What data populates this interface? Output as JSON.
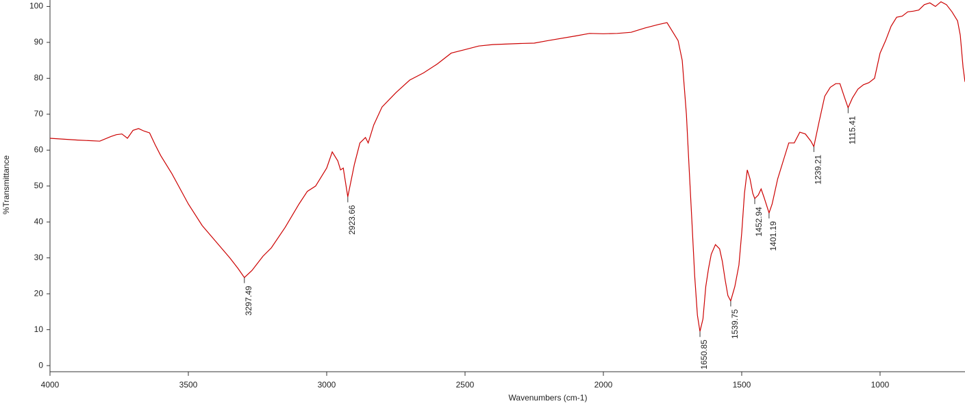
{
  "chart_data": {
    "type": "line",
    "x_label": "Wavenumbers (cm-1)",
    "y_label": "%Transmittance",
    "color": "#cc0000",
    "xlim": [
      4000,
      693
    ],
    "ylim": [
      -1.7,
      101.8
    ],
    "xticks": [
      4000,
      3500,
      3000,
      2500,
      2000,
      1500,
      1000
    ],
    "yticks": [
      0,
      10,
      20,
      30,
      40,
      50,
      60,
      70,
      80,
      90,
      100
    ],
    "x": [
      4000,
      3900,
      3820,
      3780,
      3760,
      3740,
      3720,
      3700,
      3680,
      3660,
      3640,
      3620,
      3600,
      3560,
      3500,
      3450,
      3400,
      3350,
      3320,
      3297.49,
      3270,
      3230,
      3200,
      3150,
      3100,
      3070,
      3040,
      3000,
      2980,
      2960,
      2950,
      2940,
      2923.66,
      2900,
      2880,
      2860,
      2850,
      2830,
      2800,
      2750,
      2700,
      2650,
      2600,
      2550,
      2500,
      2450,
      2400,
      2300,
      2250,
      2200,
      2100,
      2050,
      2000,
      1950,
      1900,
      1850,
      1800,
      1770,
      1750,
      1730,
      1715,
      1700,
      1690,
      1680,
      1670,
      1660,
      1650.85,
      1640,
      1630,
      1620,
      1610,
      1595,
      1580,
      1570,
      1560,
      1550,
      1539.75,
      1525,
      1510,
      1500,
      1490,
      1480,
      1470,
      1460,
      1452.94,
      1440,
      1430,
      1420,
      1401.19,
      1390,
      1370,
      1350,
      1330,
      1310,
      1290,
      1270,
      1250,
      1239.21,
      1220,
      1200,
      1180,
      1160,
      1145,
      1130,
      1115.41,
      1100,
      1080,
      1060,
      1040,
      1020,
      1000,
      980,
      960,
      940,
      920,
      900,
      880,
      860,
      840,
      820,
      800,
      780,
      760,
      740,
      720,
      710,
      700,
      693
    ],
    "values": [
      63.3,
      62.8,
      62.5,
      63.8,
      64.3,
      64.5,
      63.3,
      65.5,
      66,
      65.3,
      64.8,
      61.5,
      58.5,
      53.5,
      45,
      39,
      34.5,
      30,
      27,
      24.5,
      26.5,
      30.5,
      32.8,
      38.5,
      45,
      48.5,
      50,
      55,
      59.5,
      57,
      54.5,
      55,
      47,
      56,
      62,
      63.5,
      62,
      67,
      72,
      76,
      79.5,
      81.5,
      84,
      87,
      88,
      89,
      89.4,
      89.7,
      89.8,
      90.5,
      91.8,
      92.5,
      92.4,
      92.5,
      92.8,
      94,
      95,
      95.5,
      93,
      90.5,
      85,
      70,
      55,
      40,
      25,
      14,
      9.5,
      13,
      22,
      27,
      31,
      33.7,
      32.5,
      29,
      24,
      19.5,
      18,
      22,
      28,
      37,
      48,
      54.5,
      52,
      48,
      46.5,
      47.5,
      49.2,
      47,
      42.5,
      45,
      52,
      57,
      62,
      62,
      65,
      64.5,
      62.5,
      61,
      68,
      75,
      77.5,
      78.5,
      78.5,
      75,
      71.8,
      74.5,
      77,
      78.2,
      78.8,
      80,
      87,
      90.5,
      94.5,
      97,
      97.3,
      98.5,
      98.7,
      99,
      100.5,
      101,
      100,
      101.3,
      100.5,
      98.5,
      96,
      92,
      83,
      79
    ],
    "peaks": [
      {
        "x": 3297.49,
        "y": 24.5
      },
      {
        "x": 2923.66,
        "y": 47
      },
      {
        "x": 1650.85,
        "y": 9.5
      },
      {
        "x": 1539.75,
        "y": 18
      },
      {
        "x": 1452.94,
        "y": 46.5
      },
      {
        "x": 1401.19,
        "y": 42.5
      },
      {
        "x": 1239.21,
        "y": 61
      },
      {
        "x": 1115.41,
        "y": 71.8
      }
    ]
  }
}
